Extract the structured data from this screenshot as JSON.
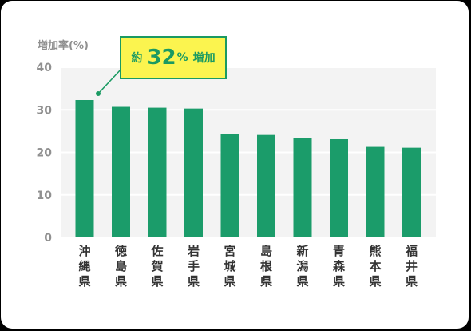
{
  "colors": {
    "bar": "#1b9c6a",
    "plot_bg": "#f3f3f3",
    "grid": "#ffffff",
    "text": "#909090",
    "label": "#333333",
    "callout_bg": "#fbf44f",
    "callout_border": "#1a9a62"
  },
  "callout": {
    "prefix": "約",
    "value": "32",
    "unit": "%",
    "suffix": "増加"
  },
  "chart_data": {
    "type": "bar",
    "title": "",
    "ylabel": "増加率(%)",
    "xlabel": "",
    "ylim": [
      0,
      40
    ],
    "yticks": [
      0,
      10,
      20,
      30,
      40
    ],
    "grid": true,
    "categories": [
      "沖縄県",
      "徳島県",
      "佐賀県",
      "岩手県",
      "宮城県",
      "島根県",
      "新潟県",
      "青森県",
      "熊本県",
      "福井県"
    ],
    "values": [
      32.3,
      30.7,
      30.5,
      30.3,
      24.4,
      24.1,
      23.3,
      23.1,
      21.3,
      21.1
    ]
  }
}
